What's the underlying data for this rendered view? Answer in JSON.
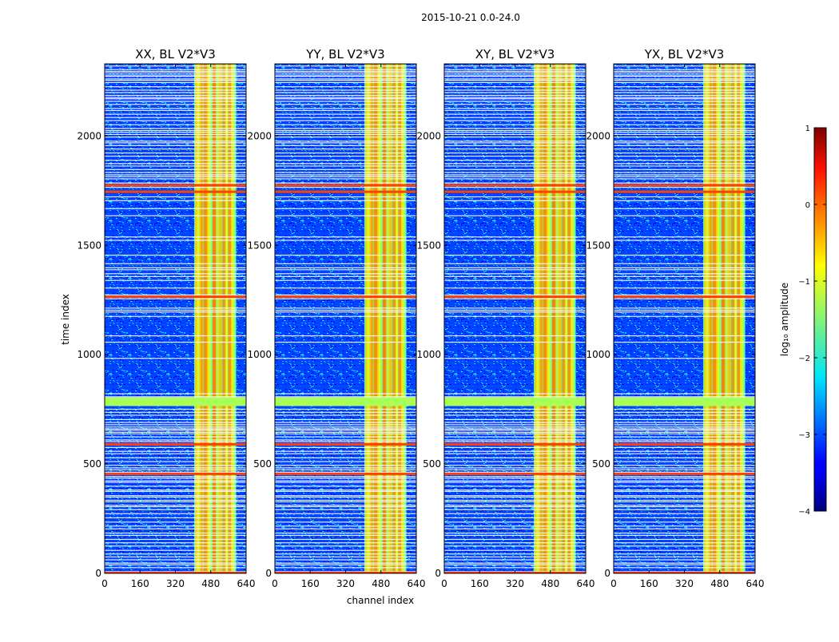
{
  "figure": {
    "suptitle": "2015-10-21 0.0-24.0",
    "xlabel": "channel index",
    "ylabel": "time index"
  },
  "chart_data": {
    "type": "heatmap",
    "colormap": "jet",
    "x_range": [
      0,
      640
    ],
    "y_range": [
      0,
      2330
    ],
    "x_ticks": [
      "0",
      "160",
      "320",
      "480",
      "640"
    ],
    "y_ticks": [
      "0",
      "500",
      "1000",
      "1500",
      "2000"
    ],
    "panels": [
      {
        "title": "XX, BL V2*V3"
      },
      {
        "title": "YY, BL V2*V3"
      },
      {
        "title": "XY, BL V2*V3"
      },
      {
        "title": "YX, BL V2*V3"
      }
    ],
    "colorbar": {
      "label": "log₁₀ amplitude",
      "range": [
        -4,
        1
      ],
      "ticks": [
        "−4",
        "−3",
        "−2",
        "−1",
        "0",
        "1"
      ]
    },
    "features": {
      "bright_channel_band": [
        405,
        595
      ],
      "flagged_time_rows": [
        [
          765,
          805
        ]
      ],
      "hot_time_rows": [
        455,
        590,
        1745,
        1775
      ],
      "stripe_channels": [
        455,
        495,
        540,
        565
      ]
    }
  }
}
